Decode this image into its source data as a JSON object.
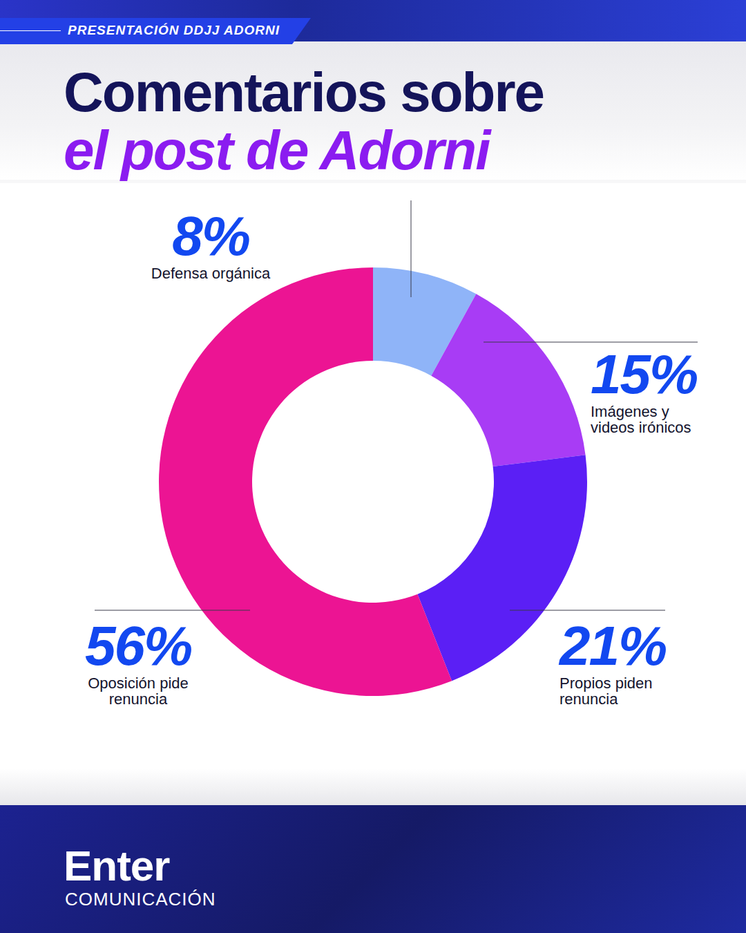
{
  "chart_data": {
    "type": "pie",
    "title": "Comentarios sobre el post de Adorni",
    "categories": [
      "Defensa orgánica",
      "Imágenes y videos irónicos",
      "Propios piden renuncia",
      "Oposición pide renuncia"
    ],
    "values": [
      8,
      15,
      21,
      56
    ],
    "value_labels": [
      "8%",
      "15%",
      "21%",
      "56%"
    ],
    "colors": [
      "#8fb4f8",
      "#a83cf5",
      "#5b1ff5",
      "#ec1493"
    ],
    "data_labels": true
  },
  "header": "PRESENTACIÓN DDJJ ADORNI",
  "footer": {
    "brand": "Enter",
    "tagline": "COMUNICACIÓN"
  }
}
